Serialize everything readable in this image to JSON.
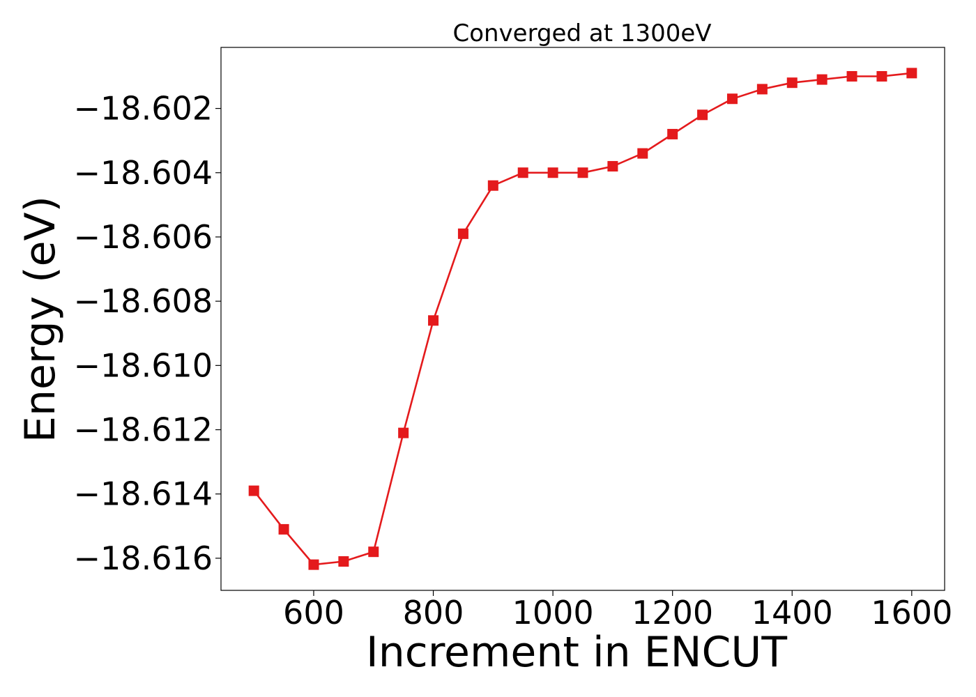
{
  "chart_data": {
    "type": "line",
    "title": "Converged at 1300eV",
    "xlabel": "Increment in ENCUT",
    "ylabel": "Energy (eV)",
    "xlim": [
      445,
      1655
    ],
    "ylim": [
      -18.617,
      -18.6001
    ],
    "x_ticks": [
      600,
      800,
      1000,
      1200,
      1400,
      1600
    ],
    "x_tick_labels": [
      "600",
      "800",
      "1000",
      "1200",
      "1400",
      "1600"
    ],
    "y_ticks": [
      -18.616,
      -18.614,
      -18.612,
      -18.61,
      -18.608,
      -18.606,
      -18.604,
      -18.602
    ],
    "y_tick_labels": [
      "−18.616",
      "−18.614",
      "−18.612",
      "−18.610",
      "−18.608",
      "−18.606",
      "−18.604",
      "−18.602"
    ],
    "grid": false,
    "series": [
      {
        "color": "#e41a1c",
        "marker": "square",
        "x": [
          500,
          550,
          600,
          650,
          700,
          750,
          800,
          850,
          900,
          950,
          1000,
          1050,
          1100,
          1150,
          1200,
          1250,
          1300,
          1350,
          1400,
          1450,
          1500,
          1550,
          1600
        ],
        "values": [
          -18.6139,
          -18.6151,
          -18.6162,
          -18.6161,
          -18.6158,
          -18.6121,
          -18.6086,
          -18.6059,
          -18.6044,
          -18.604,
          -18.604,
          -18.604,
          -18.6038,
          -18.6034,
          -18.6028,
          -18.6022,
          -18.6017,
          -18.6014,
          -18.6012,
          -18.6011,
          -18.601,
          -18.601,
          -18.6009
        ]
      }
    ]
  }
}
